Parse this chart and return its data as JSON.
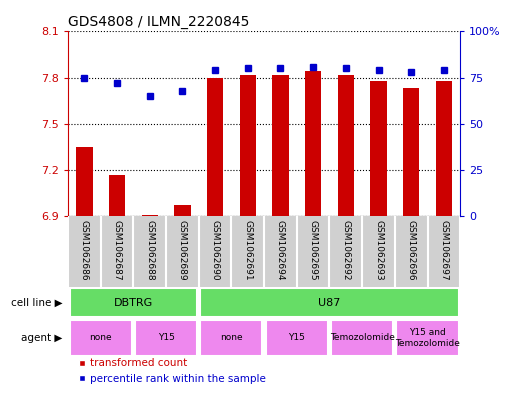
{
  "title": "GDS4808 / ILMN_2220845",
  "samples": [
    "GSM1062686",
    "GSM1062687",
    "GSM1062688",
    "GSM1062689",
    "GSM1062690",
    "GSM1062691",
    "GSM1062694",
    "GSM1062695",
    "GSM1062692",
    "GSM1062693",
    "GSM1062696",
    "GSM1062697"
  ],
  "transformed_counts": [
    7.35,
    7.17,
    6.905,
    6.97,
    7.8,
    7.82,
    7.82,
    7.84,
    7.82,
    7.78,
    7.73,
    7.78
  ],
  "percentile_ranks": [
    75,
    72,
    65,
    68,
    79,
    80,
    80,
    81,
    80,
    79,
    78,
    79
  ],
  "ylim_left": [
    6.9,
    8.1
  ],
  "ylim_right": [
    0,
    100
  ],
  "yticks_left": [
    6.9,
    7.2,
    7.5,
    7.8,
    8.1
  ],
  "ytick_labels_left": [
    "6.9",
    "7.2",
    "7.5",
    "7.8",
    "8.1"
  ],
  "yticks_right": [
    0,
    25,
    50,
    75,
    100
  ],
  "ytick_labels_right": [
    "0",
    "25",
    "50",
    "75",
    "100%"
  ],
  "bar_color": "#cc0000",
  "dot_color": "#0000cc",
  "sample_bg_color": "#d0d0d0",
  "cell_line_groups": [
    {
      "label": "DBTRG",
      "start": 0,
      "end": 4,
      "color": "#66dd66"
    },
    {
      "label": "U87",
      "start": 4,
      "end": 12,
      "color": "#66dd66"
    }
  ],
  "agent_groups": [
    {
      "label": "none",
      "start": 0,
      "end": 2,
      "color": "#ee88ee"
    },
    {
      "label": "Y15",
      "start": 2,
      "end": 4,
      "color": "#ee88ee"
    },
    {
      "label": "none",
      "start": 4,
      "end": 6,
      "color": "#ee88ee"
    },
    {
      "label": "Y15",
      "start": 6,
      "end": 8,
      "color": "#ee88ee"
    },
    {
      "label": "Temozolomide",
      "start": 8,
      "end": 10,
      "color": "#ee88ee"
    },
    {
      "label": "Y15 and\nTemozolomide",
      "start": 10,
      "end": 12,
      "color": "#ee88ee"
    }
  ],
  "legend_bar_label": "transformed count",
  "legend_dot_label": "percentile rank within the sample",
  "bar_width": 0.5,
  "base_value": 6.9
}
